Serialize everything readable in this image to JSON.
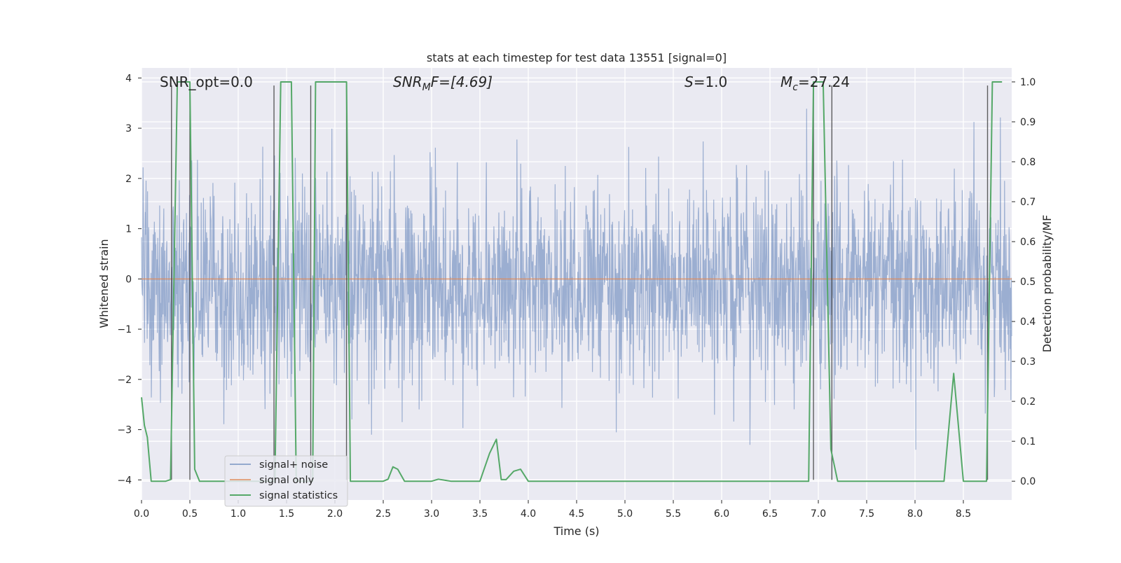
{
  "chart_data": {
    "type": "line",
    "title": "stats at each timestep for test data 13551 [signal=0]",
    "xlabel": "Time (s)",
    "ylabel": "Whitened strain",
    "y2label": "Detection probability/MF",
    "xlim": [
      0.0,
      9.0
    ],
    "ylim": [
      -4.4,
      4.2
    ],
    "y2lim": [
      -0.047,
      1.035
    ],
    "xticks": [
      "0.0",
      "0.5",
      "1.0",
      "1.5",
      "2.0",
      "2.5",
      "3.0",
      "3.5",
      "4.0",
      "4.5",
      "5.0",
      "5.5",
      "6.0",
      "6.5",
      "7.0",
      "7.5",
      "8.0",
      "8.5"
    ],
    "yticks": [
      "−4",
      "−3",
      "−2",
      "−1",
      "0",
      "1",
      "2",
      "3",
      "4"
    ],
    "y2ticks": [
      "0.0",
      "0.1",
      "0.2",
      "0.3",
      "0.4",
      "0.5",
      "0.6",
      "0.7",
      "0.8",
      "0.9",
      "1.0"
    ],
    "grid": true,
    "legend_position": "lower-left",
    "annotations": {
      "snr_opt": "SNR_opt=0.0",
      "snr_mf_prefix": "SNR",
      "snr_mf_sub": "M",
      "snr_mf_suffix": "F=[4.69]",
      "s_italic": "S",
      "s_value": "=1.0",
      "mc_italic": "M",
      "mc_sub": "c",
      "mc_value": "=27.24"
    },
    "series": [
      {
        "name": "signal+ noise",
        "color": "#4c72b0",
        "kind": "noise",
        "sample_rate_hz": 256,
        "typical_envelope": [
          -1.7,
          1.5
        ],
        "peak_range": [
          -3.9,
          3.9
        ]
      },
      {
        "name": "signal only",
        "color": "#dd8452",
        "kind": "constant",
        "value": 0.0
      },
      {
        "name": "signal statistics",
        "color": "#55a868",
        "axis": "y2",
        "x": [
          0.0,
          0.03,
          0.06,
          0.1,
          0.2,
          0.25,
          0.3,
          0.37,
          0.42,
          0.5,
          0.55,
          0.6,
          0.7,
          0.8,
          1.0,
          1.2,
          1.3,
          1.38,
          1.44,
          1.5,
          1.55,
          1.6,
          1.7,
          1.74,
          1.77,
          1.8,
          2.0,
          2.12,
          2.16,
          2.2,
          2.5,
          2.55,
          2.6,
          2.65,
          2.72,
          2.8,
          3.0,
          3.07,
          3.2,
          3.5,
          3.6,
          3.67,
          3.72,
          3.77,
          3.85,
          3.92,
          4.0,
          4.5,
          5.0,
          5.5,
          6.0,
          6.5,
          6.9,
          6.95,
          7.0,
          7.05,
          7.13,
          7.2,
          7.5,
          8.0,
          8.3,
          8.4,
          8.5,
          8.6,
          8.74,
          8.8,
          8.9
        ],
        "y": [
          0.21,
          0.14,
          0.11,
          0.0,
          0.0,
          0.0,
          0.004,
          1.0,
          1.0,
          1.0,
          0.03,
          0.0,
          0.0,
          0.0,
          0.0,
          0.0,
          0.0,
          0.0,
          1.0,
          1.0,
          1.0,
          0.0,
          0.0,
          0.0,
          0.0,
          1.0,
          1.0,
          1.0,
          0.0,
          0.0,
          0.0,
          0.005,
          0.036,
          0.03,
          0.0,
          0.0,
          0.0,
          0.005,
          0.0,
          0.0,
          0.07,
          0.105,
          0.004,
          0.004,
          0.025,
          0.03,
          0.0,
          0.0,
          0.0,
          0.0,
          0.0,
          0.0,
          0.0,
          1.0,
          1.0,
          1.0,
          0.08,
          0.0,
          0.0,
          0.0,
          0.0,
          0.27,
          0.0,
          0.0,
          0.0,
          1.0,
          1.0
        ]
      }
    ],
    "vlines": [
      0.31,
      0.5,
      1.37,
      1.75,
      2.12,
      6.95,
      7.14,
      8.75
    ]
  }
}
